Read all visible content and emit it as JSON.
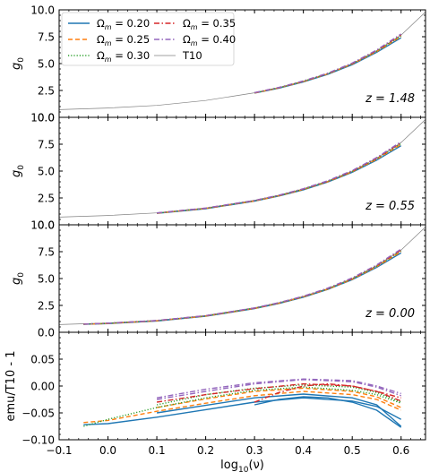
{
  "chart_data": [
    {
      "type": "line",
      "panel": "z148",
      "ylabel": "g",
      "ylabel_sub": "0",
      "annotation": "z = 1.48",
      "ylim": [
        0,
        10
      ],
      "yticks": [
        "0.0",
        "2.5",
        "5.0",
        "7.5",
        "10.0"
      ],
      "yticks_values": [
        0,
        2.5,
        5,
        7.5,
        10
      ],
      "xlim": [
        -0.1,
        0.65
      ],
      "legend": {
        "placement": "top-left",
        "entries": [
          {
            "prefix": "Ω",
            "sub": "m",
            "value": " = 0.20",
            "color": "#1f77b4",
            "dash": "solid"
          },
          {
            "prefix": "Ω",
            "sub": "m",
            "value": " = 0.25",
            "color": "#ff7f0e",
            "dash": "dashed"
          },
          {
            "prefix": "Ω",
            "sub": "m",
            "value": " = 0.30",
            "color": "#2ca02c",
            "dash": "dotted"
          },
          {
            "prefix": "Ω",
            "sub": "m",
            "value": " = 0.35",
            "color": "#d62728",
            "dash": "dashdot"
          },
          {
            "prefix": "Ω",
            "sub": "m",
            "value": " = 0.40",
            "color": "#9467bd",
            "dash": "dashdot"
          },
          {
            "prefix": "",
            "sub": "",
            "value": "T10",
            "color": "#808080",
            "dash": "thin"
          }
        ]
      },
      "series": [
        {
          "name": "T10",
          "x": [
            -0.1,
            0.0,
            0.1,
            0.2,
            0.3,
            0.35,
            0.4,
            0.45,
            0.5,
            0.55,
            0.6,
            0.65
          ],
          "y": [
            0.72,
            0.87,
            1.11,
            1.57,
            2.28,
            2.76,
            3.35,
            4.07,
            5.0,
            6.2,
            7.65,
            9.8
          ]
        },
        {
          "name": "Ωm = 0.20",
          "x": [
            0.3,
            0.35,
            0.4,
            0.45,
            0.5,
            0.55,
            0.6
          ],
          "y": [
            2.25,
            2.72,
            3.3,
            4.0,
            4.9,
            6.05,
            7.4
          ]
        },
        {
          "name": "Ωm = 0.25",
          "x": [
            0.3,
            0.35,
            0.4,
            0.45,
            0.5,
            0.55,
            0.6
          ],
          "y": [
            2.27,
            2.74,
            3.33,
            4.04,
            4.96,
            6.12,
            7.52
          ]
        },
        {
          "name": "Ωm = 0.30",
          "x": [
            0.3,
            0.35,
            0.4,
            0.45,
            0.5,
            0.55,
            0.6
          ],
          "y": [
            2.28,
            2.75,
            3.35,
            4.06,
            4.98,
            6.16,
            7.58
          ]
        },
        {
          "name": "Ωm = 0.35",
          "x": [
            0.3,
            0.35,
            0.4,
            0.45,
            0.5,
            0.55,
            0.6
          ],
          "y": [
            2.29,
            2.77,
            3.37,
            4.09,
            5.02,
            6.22,
            7.68
          ]
        },
        {
          "name": "Ωm = 0.40",
          "x": [
            0.3,
            0.35,
            0.4,
            0.45,
            0.5,
            0.55,
            0.6
          ],
          "y": [
            2.3,
            2.78,
            3.39,
            4.11,
            5.05,
            6.27,
            7.76
          ]
        }
      ]
    },
    {
      "type": "line",
      "panel": "z055",
      "ylabel": "g",
      "ylabel_sub": "0",
      "annotation": "z = 0.55",
      "ylim": [
        0,
        10
      ],
      "yticks": [
        "0.0",
        "2.5",
        "5.0",
        "7.5",
        "10.0"
      ],
      "yticks_values": [
        0,
        2.5,
        5,
        7.5,
        10
      ],
      "xlim": [
        -0.1,
        0.65
      ],
      "series": [
        {
          "name": "T10",
          "x": [
            -0.1,
            0.0,
            0.1,
            0.2,
            0.3,
            0.35,
            0.4,
            0.45,
            0.5,
            0.55,
            0.6,
            0.65
          ],
          "y": [
            0.72,
            0.87,
            1.11,
            1.57,
            2.28,
            2.76,
            3.35,
            4.07,
            5.0,
            6.2,
            7.65,
            9.8
          ]
        },
        {
          "name": "Ωm = 0.20",
          "x": [
            0.1,
            0.2,
            0.3,
            0.35,
            0.4,
            0.45,
            0.5,
            0.55,
            0.6
          ],
          "y": [
            1.07,
            1.5,
            2.2,
            2.68,
            3.26,
            3.98,
            4.88,
            6.02,
            7.36
          ]
        },
        {
          "name": "Ωm = 0.25",
          "x": [
            0.1,
            0.2,
            0.3,
            0.35,
            0.4,
            0.45,
            0.5,
            0.55,
            0.6
          ],
          "y": [
            1.08,
            1.52,
            2.22,
            2.7,
            3.29,
            4.01,
            4.93,
            6.1,
            7.48
          ]
        },
        {
          "name": "Ωm = 0.30",
          "x": [
            0.1,
            0.2,
            0.3,
            0.35,
            0.4,
            0.45,
            0.5,
            0.55,
            0.6
          ],
          "y": [
            1.09,
            1.53,
            2.24,
            2.72,
            3.31,
            4.04,
            4.97,
            6.15,
            7.56
          ]
        },
        {
          "name": "Ωm = 0.35",
          "x": [
            0.1,
            0.2,
            0.3,
            0.35,
            0.4,
            0.45,
            0.5,
            0.55,
            0.6
          ],
          "y": [
            1.1,
            1.55,
            2.26,
            2.74,
            3.34,
            4.07,
            5.01,
            6.21,
            7.65
          ]
        },
        {
          "name": "Ωm = 0.40",
          "x": [
            0.1,
            0.2,
            0.3,
            0.35,
            0.4,
            0.45,
            0.5,
            0.55,
            0.6
          ],
          "y": [
            1.11,
            1.56,
            2.27,
            2.76,
            3.36,
            4.1,
            5.05,
            6.26,
            7.73
          ]
        }
      ]
    },
    {
      "type": "line",
      "panel": "z000",
      "ylabel": "g",
      "ylabel_sub": "0",
      "annotation": "z = 0.00",
      "ylim": [
        0,
        10
      ],
      "yticks": [
        "0.0",
        "2.5",
        "5.0",
        "7.5",
        "10.0"
      ],
      "yticks_values": [
        0,
        2.5,
        5,
        7.5,
        10
      ],
      "xlim": [
        -0.1,
        0.65
      ],
      "series": [
        {
          "name": "T10",
          "x": [
            -0.1,
            0.0,
            0.1,
            0.2,
            0.3,
            0.35,
            0.4,
            0.45,
            0.5,
            0.55,
            0.6,
            0.65
          ],
          "y": [
            0.72,
            0.87,
            1.11,
            1.57,
            2.28,
            2.76,
            3.35,
            4.07,
            5.0,
            6.2,
            7.65,
            9.8
          ]
        },
        {
          "name": "Ωm = 0.20",
          "x": [
            -0.05,
            0.0,
            0.1,
            0.2,
            0.3,
            0.35,
            0.4,
            0.45,
            0.5,
            0.55,
            0.6
          ],
          "y": [
            0.74,
            0.81,
            1.05,
            1.49,
            2.2,
            2.68,
            3.27,
            3.99,
            4.9,
            6.04,
            7.38
          ]
        },
        {
          "name": "Ωm = 0.25",
          "x": [
            -0.05,
            0.0,
            0.1,
            0.2,
            0.3,
            0.35,
            0.4,
            0.45,
            0.5,
            0.55,
            0.6
          ],
          "y": [
            0.75,
            0.82,
            1.07,
            1.51,
            2.22,
            2.7,
            3.3,
            4.02,
            4.94,
            6.11,
            7.5
          ]
        },
        {
          "name": "Ωm = 0.30",
          "x": [
            -0.05,
            0.0,
            0.1,
            0.2,
            0.3,
            0.35,
            0.4,
            0.45,
            0.5,
            0.55,
            0.6
          ],
          "y": [
            0.75,
            0.83,
            1.08,
            1.52,
            2.24,
            2.72,
            3.32,
            4.05,
            4.98,
            6.16,
            7.58
          ]
        },
        {
          "name": "Ωm = 0.35",
          "x": [
            -0.05,
            0.0,
            0.1,
            0.2,
            0.3,
            0.35,
            0.4,
            0.45,
            0.5,
            0.55,
            0.6
          ],
          "y": [
            0.76,
            0.84,
            1.09,
            1.54,
            2.25,
            2.74,
            3.34,
            4.08,
            5.02,
            6.22,
            7.66
          ]
        },
        {
          "name": "Ωm = 0.40",
          "x": [
            -0.05,
            0.0,
            0.1,
            0.2,
            0.3,
            0.35,
            0.4,
            0.45,
            0.5,
            0.55,
            0.6
          ],
          "y": [
            0.76,
            0.85,
            1.1,
            1.55,
            2.27,
            2.76,
            3.36,
            4.11,
            5.06,
            6.27,
            7.74
          ]
        }
      ]
    },
    {
      "type": "line",
      "panel": "ratio",
      "ylabel": "emu/T10 - 1",
      "xlabel": "log",
      "xlabel_sub": "10",
      "xlabel_suffix": "(ν)",
      "ylim": [
        -0.1,
        0.1
      ],
      "yticks": [
        "−0.10",
        "−0.05",
        "0.00",
        "0.05"
      ],
      "yticks_values": [
        -0.1,
        -0.05,
        0.0,
        0.05
      ],
      "xlim": [
        -0.1,
        0.65
      ],
      "xticks": [
        "−0.1",
        "0.0",
        "0.1",
        "0.2",
        "0.3",
        "0.4",
        "0.5",
        "0.6"
      ],
      "xticks_values": [
        -0.1,
        0.0,
        0.1,
        0.2,
        0.3,
        0.4,
        0.5,
        0.6
      ],
      "series": [
        {
          "name": "Ωm = 0.20 (z=0.00)",
          "x": [
            -0.05,
            0.0,
            0.1,
            0.2,
            0.3,
            0.4,
            0.5,
            0.55,
            0.6
          ],
          "y": [
            -0.072,
            -0.07,
            -0.058,
            -0.044,
            -0.03,
            -0.022,
            -0.028,
            -0.038,
            -0.062
          ]
        },
        {
          "name": "Ωm = 0.20 (z=0.55)",
          "x": [
            0.1,
            0.2,
            0.3,
            0.4,
            0.5,
            0.55,
            0.6
          ],
          "y": [
            -0.05,
            -0.036,
            -0.022,
            -0.015,
            -0.022,
            -0.035,
            -0.075
          ]
        },
        {
          "name": "Ωm = 0.20 (z=1.48)",
          "x": [
            0.3,
            0.35,
            0.4,
            0.45,
            0.5,
            0.55,
            0.6
          ],
          "y": [
            -0.035,
            -0.025,
            -0.02,
            -0.022,
            -0.03,
            -0.045,
            -0.077
          ]
        },
        {
          "name": "Ωm = 0.25 (z=0.00)",
          "x": [
            -0.05,
            0.0,
            0.1,
            0.2,
            0.3,
            0.4,
            0.5,
            0.55,
            0.6
          ],
          "y": [
            -0.068,
            -0.064,
            -0.047,
            -0.032,
            -0.018,
            -0.01,
            -0.016,
            -0.025,
            -0.045
          ]
        },
        {
          "name": "Ωm = 0.25 (z=0.55)",
          "x": [
            0.1,
            0.2,
            0.3,
            0.4,
            0.5,
            0.55,
            0.6
          ],
          "y": [
            -0.04,
            -0.024,
            -0.01,
            -0.004,
            -0.01,
            -0.02,
            -0.04
          ]
        },
        {
          "name": "Ωm = 0.30 (z=0.00)",
          "x": [
            -0.05,
            0.0,
            0.1,
            0.2,
            0.3,
            0.4,
            0.5,
            0.55,
            0.6
          ],
          "y": [
            -0.075,
            -0.062,
            -0.04,
            -0.022,
            -0.008,
            -0.002,
            -0.008,
            -0.016,
            -0.032
          ]
        },
        {
          "name": "Ωm = 0.30 (z=0.55)",
          "x": [
            0.1,
            0.2,
            0.3,
            0.4,
            0.5,
            0.55,
            0.6
          ],
          "y": [
            -0.035,
            -0.016,
            -0.004,
            0.002,
            -0.002,
            -0.012,
            -0.03
          ]
        },
        {
          "name": "Ωm = 0.35 (z=0.00)",
          "x": [
            0.1,
            0.2,
            0.3,
            0.4,
            0.5,
            0.55,
            0.6
          ],
          "y": [
            -0.03,
            -0.016,
            -0.005,
            0.004,
            0.0,
            -0.01,
            -0.022
          ]
        },
        {
          "name": "Ωm = 0.35 (z=1.48)",
          "x": [
            0.3,
            0.35,
            0.4,
            0.45,
            0.5,
            0.55,
            0.6
          ],
          "y": [
            -0.03,
            -0.012,
            0.0,
            0.004,
            0.0,
            -0.01,
            -0.028
          ]
        },
        {
          "name": "Ωm = 0.40 (z=0.00)",
          "x": [
            0.1,
            0.2,
            0.3,
            0.4,
            0.5,
            0.55,
            0.6
          ],
          "y": [
            -0.025,
            -0.01,
            0.004,
            0.012,
            0.008,
            -0.002,
            -0.018
          ]
        },
        {
          "name": "Ωm = 0.40 (z=0.55)",
          "x": [
            0.1,
            0.2,
            0.3,
            0.4,
            0.5,
            0.55,
            0.6
          ],
          "y": [
            -0.022,
            -0.006,
            0.006,
            0.013,
            0.01,
            0.0,
            -0.014
          ]
        }
      ],
      "series_styles": [
        0,
        0,
        0,
        1,
        1,
        2,
        2,
        3,
        3,
        4,
        4
      ]
    }
  ],
  "styles": [
    {
      "color": "#1f77b4",
      "dash": "solid"
    },
    {
      "color": "#ff7f0e",
      "dash": "dashed"
    },
    {
      "color": "#2ca02c",
      "dash": "dotted"
    },
    {
      "color": "#d62728",
      "dash": "dashdot"
    },
    {
      "color": "#9467bd",
      "dash": "dashdot"
    },
    {
      "color": "#808080",
      "dash": "thin"
    }
  ]
}
